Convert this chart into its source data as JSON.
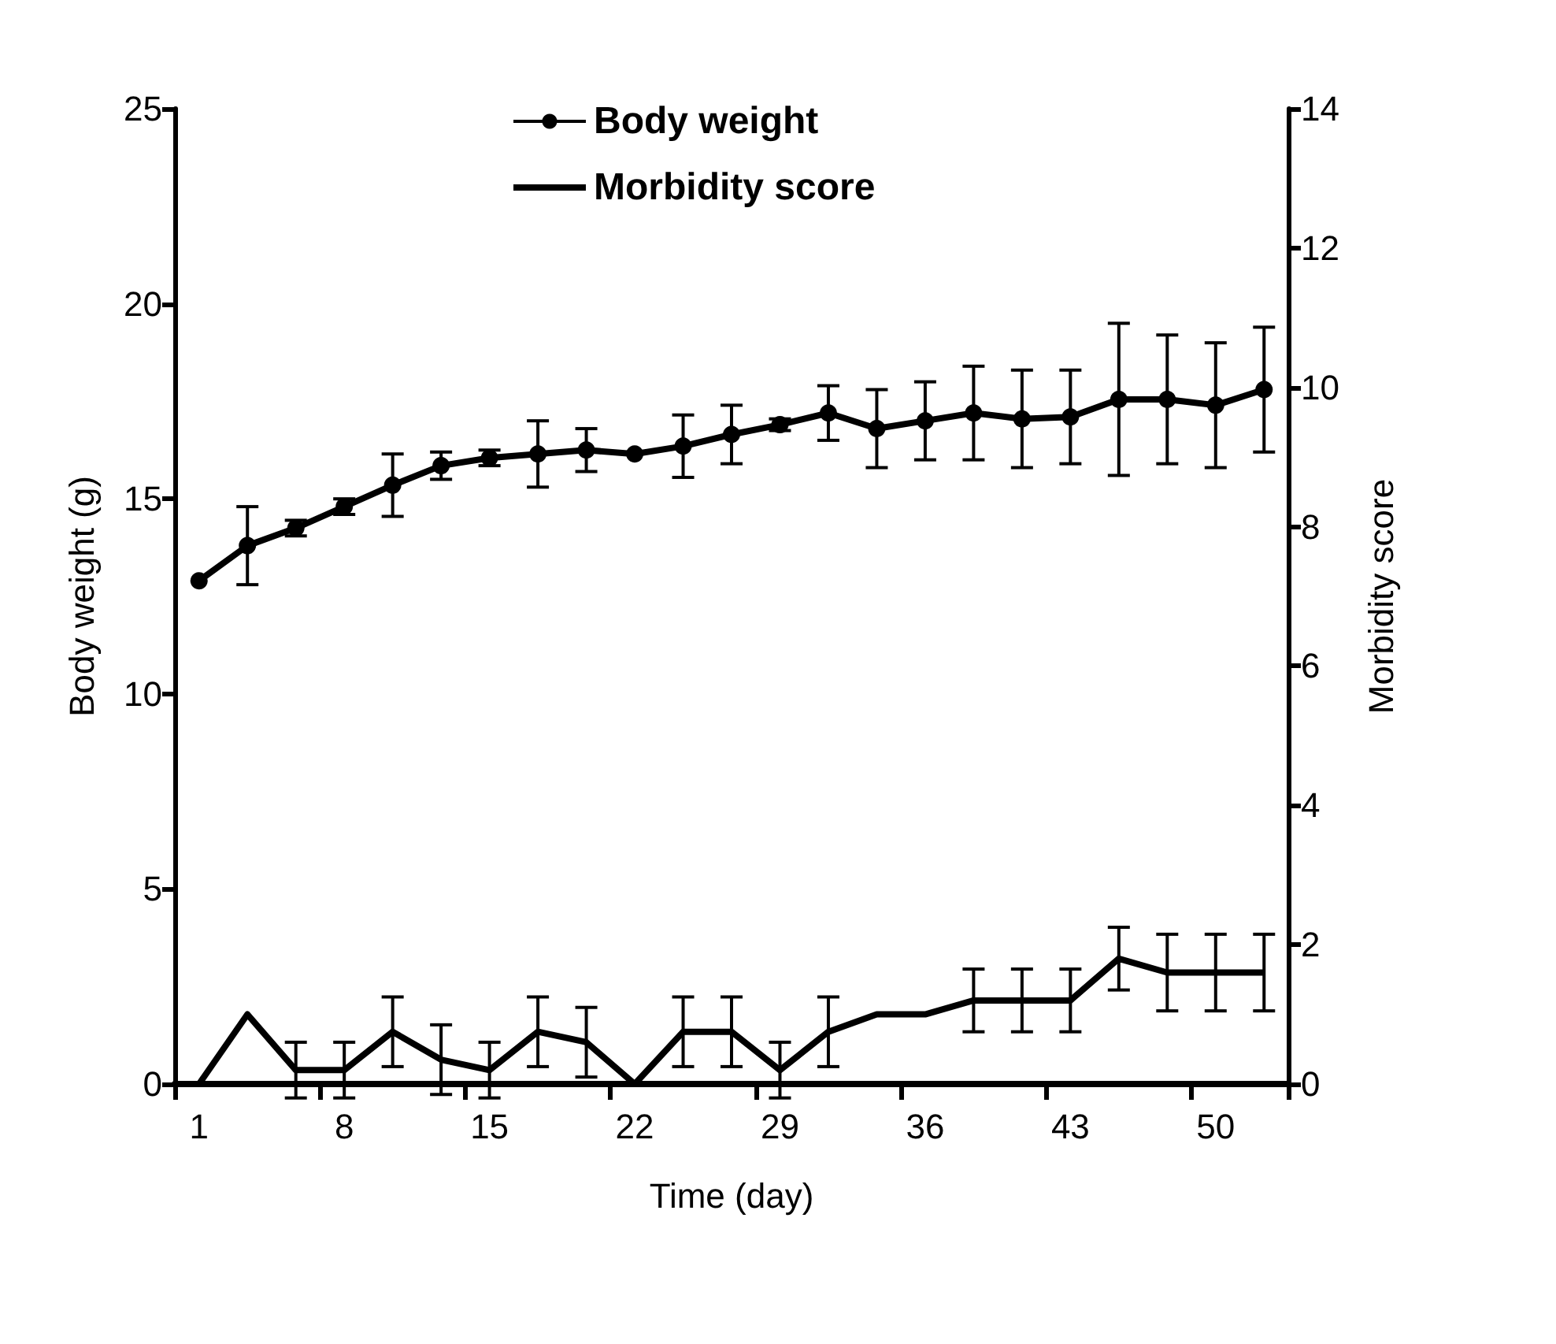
{
  "chart_data": {
    "type": "line",
    "xlabel": "Time (day)",
    "ylabel": "Body weight (g)",
    "y2label": "Morbidity score",
    "categories": [
      "1",
      null,
      null,
      "8",
      null,
      null,
      "15",
      null,
      null,
      "22",
      null,
      null,
      "29",
      null,
      null,
      "36",
      null,
      null,
      "43",
      null,
      null,
      "50",
      null
    ],
    "series": [
      {
        "name": "Body weight",
        "color": "#000000",
        "marker": "circle",
        "values": [
          12.9,
          13.8,
          14.25,
          14.8,
          15.35,
          15.85,
          16.05,
          16.15,
          16.25,
          16.15,
          16.35,
          16.65,
          16.9,
          17.2,
          16.8,
          17.0,
          17.2,
          17.05,
          17.1,
          17.55,
          17.55,
          17.4,
          17.8
        ],
        "errors": [
          null,
          1.0,
          0.2,
          0.2,
          0.8,
          0.35,
          0.2,
          0.85,
          0.55,
          null,
          0.8,
          0.75,
          0.15,
          0.7,
          1.0,
          1.0,
          1.2,
          1.25,
          1.2,
          1.95,
          1.65,
          1.6,
          1.6
        ]
      },
      {
        "name": "Morbidity score",
        "color": "#000000",
        "marker": "none",
        "axis": "y2",
        "values": [
          0,
          1.0,
          0.2,
          0.2,
          0.75,
          0.35,
          0.2,
          0.75,
          0.6,
          0,
          0.75,
          0.75,
          0.2,
          0.75,
          1.0,
          1.0,
          1.2,
          1.2,
          1.2,
          1.8,
          1.6,
          1.6,
          1.6
        ],
        "errors": [
          null,
          null,
          0.4,
          0.4,
          0.5,
          0.5,
          0.4,
          0.5,
          0.5,
          null,
          0.5,
          0.5,
          0.4,
          0.5,
          null,
          null,
          0.45,
          0.45,
          0.45,
          0.45,
          0.55,
          0.55,
          0.55
        ]
      }
    ],
    "ylim": [
      0,
      25
    ],
    "yticks": [
      0,
      5,
      10,
      15,
      20,
      25
    ],
    "y2lim": [
      0,
      14
    ],
    "y2ticks": [
      0,
      2,
      4,
      6,
      8,
      10,
      12,
      14
    ],
    "grid": false,
    "legend": "top"
  }
}
